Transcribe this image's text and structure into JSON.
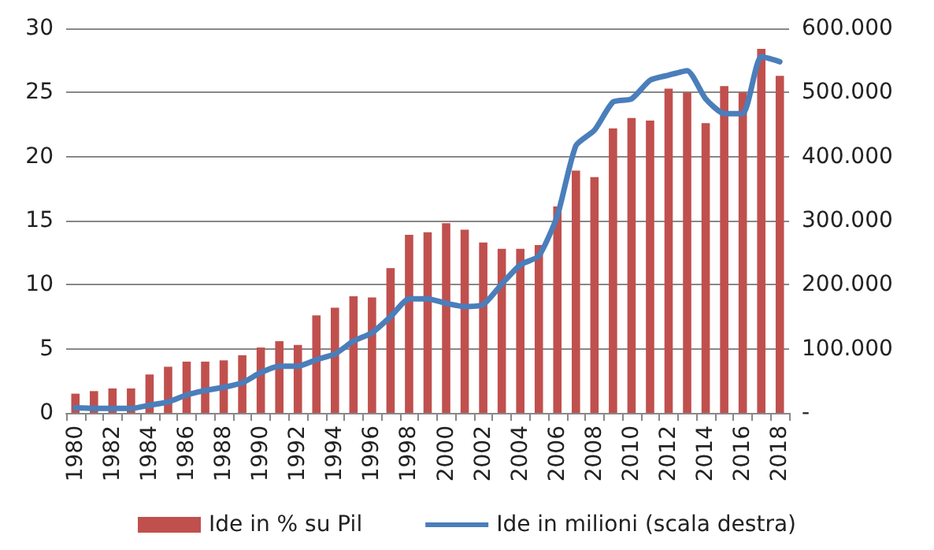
{
  "chart_data": {
    "type": "bar",
    "categories": [
      "1980",
      null,
      "1982",
      null,
      "1984",
      null,
      "1986",
      null,
      "1988",
      null,
      "1990",
      null,
      "1992",
      null,
      "1994",
      null,
      "1996",
      null,
      "1998",
      null,
      "2000",
      null,
      "2002",
      null,
      "2004",
      null,
      "2006",
      null,
      "2008",
      null,
      "2010",
      null,
      "2012",
      null,
      "2014",
      null,
      "2016",
      null,
      "2018"
    ],
    "series": [
      {
        "name": "Ide in % su Pil",
        "color": "#c0504d",
        "values": [
          1.5,
          1.7,
          1.9,
          1.9,
          3.0,
          3.6,
          4.0,
          4.0,
          4.1,
          4.5,
          5.1,
          5.6,
          5.3,
          7.6,
          8.2,
          9.1,
          9.0,
          11.3,
          13.9,
          14.1,
          14.8,
          14.3,
          13.3,
          12.8,
          12.8,
          13.1,
          16.1,
          18.9,
          18.4,
          22.2,
          23.0,
          22.8,
          25.3,
          25.0,
          22.6,
          25.5,
          25.0,
          28.4,
          26.3
        ]
      },
      {
        "name": "Ide in milioni (scala destra)",
        "type": "line",
        "axis": "y2",
        "color": "#4a7ebb",
        "values": [
          8000,
          7000,
          7000,
          7000,
          12000,
          17000,
          28000,
          35000,
          40000,
          47000,
          63000,
          73000,
          73000,
          83000,
          92000,
          112000,
          125000,
          150000,
          178000,
          178000,
          171000,
          166000,
          169000,
          201000,
          231000,
          245000,
          308000,
          417000,
          441000,
          485000,
          490000,
          519000,
          527000,
          534000,
          490000,
          467000,
          467000,
          556000,
          548000
        ]
      }
    ],
    "ylim": [
      0,
      30
    ],
    "yticks": [
      0,
      5,
      10,
      15,
      20,
      25,
      30
    ],
    "y2lim": [
      0,
      600000
    ],
    "y2ticks": [
      {
        "value": 0,
        "label": "-"
      },
      {
        "value": 100000,
        "label": "100.000"
      },
      {
        "value": 200000,
        "label": "200.000"
      },
      {
        "value": 300000,
        "label": "300.000"
      },
      {
        "value": 400000,
        "label": "400.000"
      },
      {
        "value": 500000,
        "label": "500.000"
      },
      {
        "value": 600000,
        "label": "600.000"
      }
    ],
    "grid": "y",
    "legend": "bottom",
    "marker": "none",
    "line_style": "solid"
  }
}
